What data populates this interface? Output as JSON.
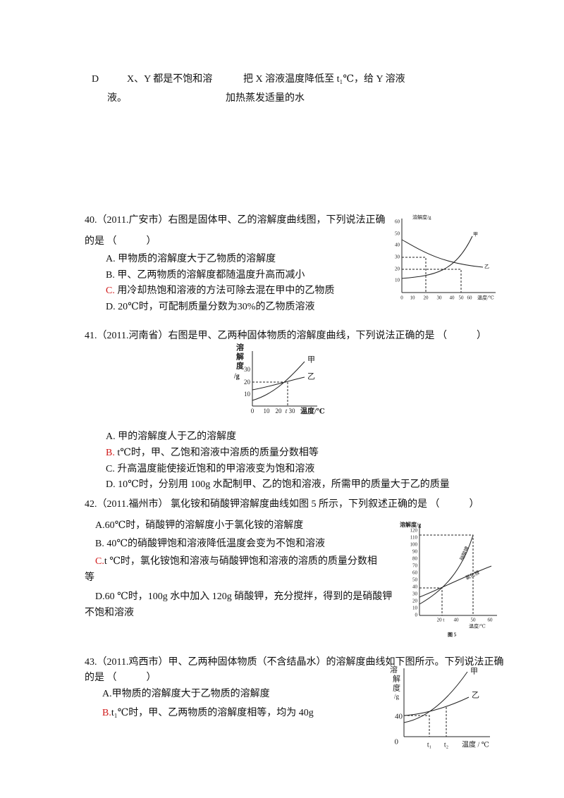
{
  "q39_option_d": {
    "letter": "D",
    "col1": "X、Y 都是不饱和溶",
    "col1_cont": "液。",
    "col2": "把 X 溶液温度降低至 t₁℃，给 Y 溶液",
    "col2_cont": "加热蒸发适量的水"
  },
  "q40": {
    "stem": "40.（2011.广安市）右图是固体甲、乙的溶解度曲线图，下列说法正确",
    "stem_cont": "的是 （　　　）",
    "options": [
      {
        "letter": "A.",
        "text": "甲物质的溶解度大于乙物质的溶解度"
      },
      {
        "letter": "B.",
        "text": "甲、乙两物质的溶解度都随温度升高而减小"
      },
      {
        "letter": "C.",
        "text": "用冷却热饱和溶液的方法可除去混在甲中的乙物质"
      },
      {
        "letter": "D.",
        "text": "20℃时，可配制质量分数为30%的乙物质溶液"
      }
    ],
    "figure": {
      "y_label": "溶解度/g",
      "x_label": "温度/℃",
      "yticks": [
        "60",
        "50",
        "40",
        "30",
        "20",
        "10"
      ],
      "xticks": [
        "0",
        "10",
        "20",
        "30",
        "40",
        "50",
        "60"
      ],
      "curve_a": "甲",
      "curve_b": "乙"
    }
  },
  "q41": {
    "stem": "41.（2011.河南省）右图是甲、乙两种固体物质的溶解度曲线，下列说法正确的是 （　　　）",
    "options": [
      {
        "letter": "A.",
        "text": "甲的溶解度人于乙的溶解度"
      },
      {
        "letter": "B.",
        "text": "t℃时，甲、乙饱和溶液中溶质的质量分数相等"
      },
      {
        "letter": "C.",
        "text": "升高温度能使接近饱和的甲溶液变为饱和溶液"
      },
      {
        "letter": "D.",
        "text": "10℃时，分别用 100g 水配制甲、乙的饱和溶液，所需甲的质量大于乙的质量"
      }
    ],
    "figure": {
      "y_label": [
        "溶",
        "解",
        "度",
        "/g"
      ],
      "x_label": "温度/℃",
      "yticks": [
        "30",
        "20",
        "10"
      ],
      "xticks": [
        "0",
        "10",
        "20",
        "t",
        "30"
      ],
      "curve_a": "甲",
      "curve_b": "乙"
    }
  },
  "q42": {
    "stem": "42.（2011.福州市）  氯化铵和硝酸钾溶解度曲线如图 5 所示，下列叙述正确的是 （　　　）",
    "option_a": "A.60℃时，硝酸钾的溶解度小于氯化铵的溶解度",
    "option_b": "B.  40℃的硝酸钾饱和溶液降低温度会变为不饱和溶液",
    "option_c_letter": "C.",
    "option_c": "t  ℃时，氯化铵饱和溶液与硝酸钾饱和溶液的溶质的质量分数相",
    "option_c_cont": "等",
    "option_d": "D.60 ℃时，100g 水中加入 120g 硝酸钾，充分搅拌，得到的是硝酸钾",
    "option_d_cont": "不饱和溶液",
    "figure": {
      "y_label": "溶解度/g",
      "x_label": "温度/℃",
      "yticks": [
        "120",
        "110",
        "100",
        "90",
        "80",
        "70",
        "60",
        "50",
        "40",
        "30",
        "20",
        "10",
        "0"
      ],
      "xticks": [
        "20 t",
        "40",
        "50",
        "60"
      ],
      "curve_a": "硝酸钾",
      "curve_b": "氯化铵",
      "caption": "图 5"
    }
  },
  "q43": {
    "stem": "43.（2011.鸡西市）甲、乙两种固体物质（不含结晶水）的溶解度曲线如下图所示。下列说法正确",
    "stem_cont": "的是 （　　　）",
    "option_a": "A.甲物质的溶解度大于乙物质的溶解度",
    "option_b_letter": "B.",
    "option_b": "t₁℃时，甲、乙两物质的溶解度相等，均为 40g",
    "figure": {
      "y_label": [
        "溶",
        "解",
        "度",
        "/g"
      ],
      "x_label": "温度 / ℃",
      "ytick": "40",
      "origin": "0",
      "xticks": [
        "t₁",
        "t₂"
      ],
      "curve_a": "甲",
      "curve_b": "乙"
    }
  }
}
